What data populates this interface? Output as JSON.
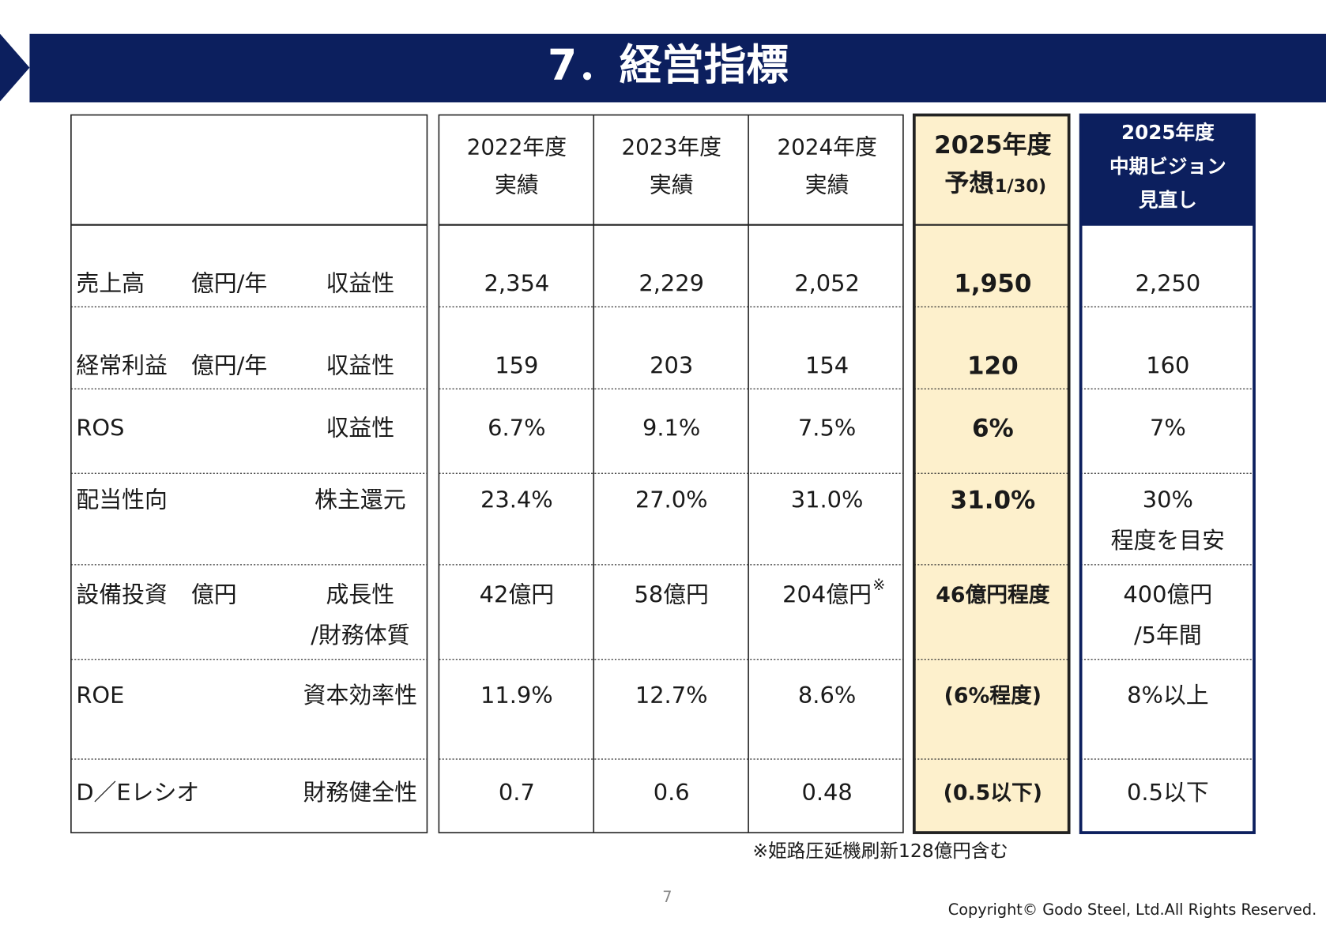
{
  "header": {
    "title": "7．経営指標"
  },
  "table": {
    "columns": [
      {
        "lines": [
          "2022年度",
          "実績"
        ]
      },
      {
        "lines": [
          "2023年度",
          "実績"
        ]
      },
      {
        "lines": [
          "2024年度",
          "実績"
        ]
      },
      {
        "lines": [
          "2025年度",
          "予想"
        ],
        "suffix": "(1/30)"
      },
      {
        "lines": [
          "2025年度",
          "中期ビジョン",
          "見直し"
        ]
      }
    ],
    "rows": [
      {
        "label": "売上高",
        "unit": "億円/年",
        "category": [
          "収益性"
        ],
        "cells": [
          {
            "lines": [
              "2,354"
            ]
          },
          {
            "lines": [
              "2,229"
            ]
          },
          {
            "lines": [
              "2,052"
            ]
          },
          {
            "lines": [
              "1,950"
            ]
          },
          {
            "lines": [
              "2,250"
            ]
          }
        ]
      },
      {
        "label": "経常利益",
        "unit": "億円/年",
        "category": [
          "収益性"
        ],
        "cells": [
          {
            "lines": [
              "159"
            ]
          },
          {
            "lines": [
              "203"
            ]
          },
          {
            "lines": [
              "154"
            ]
          },
          {
            "lines": [
              "120"
            ]
          },
          {
            "lines": [
              "160"
            ]
          }
        ]
      },
      {
        "label": "ROS",
        "category": [
          "収益性"
        ],
        "cells": [
          {
            "lines": [
              "6.7%"
            ]
          },
          {
            "lines": [
              "9.1%"
            ]
          },
          {
            "lines": [
              "7.5%"
            ]
          },
          {
            "lines": [
              "6%"
            ]
          },
          {
            "lines": [
              "7%"
            ]
          }
        ]
      },
      {
        "label": "配当性向",
        "category": [
          "株主還元"
        ],
        "cells": [
          {
            "lines": [
              "23.4%"
            ]
          },
          {
            "lines": [
              "27.0%"
            ]
          },
          {
            "lines": [
              "31.0%"
            ]
          },
          {
            "lines": [
              "31.0%"
            ]
          },
          {
            "lines": [
              "30%",
              "程度を目安"
            ]
          }
        ]
      },
      {
        "label": "設備投資",
        "unit": "億円",
        "category": [
          "成長性",
          "/財務体質"
        ],
        "cells": [
          {
            "lines": [
              "42億円"
            ]
          },
          {
            "lines": [
              "58億円"
            ]
          },
          {
            "lines": [
              "204億円"
            ],
            "note": "※"
          },
          {
            "lines": [
              "46億円程度"
            ]
          },
          {
            "lines": [
              "400億円",
              "/5年間"
            ]
          }
        ]
      },
      {
        "label": "ROE",
        "category": [
          "資本効率性"
        ],
        "cells": [
          {
            "lines": [
              "11.9%"
            ]
          },
          {
            "lines": [
              "12.7%"
            ]
          },
          {
            "lines": [
              "8.6%"
            ]
          },
          {
            "lines": [
              "(6%程度)"
            ]
          },
          {
            "lines": [
              "8%以上"
            ]
          }
        ]
      },
      {
        "label": "D／Eレシオ",
        "category": [
          "財務健全性"
        ],
        "cells": [
          {
            "lines": [
              "0.7"
            ]
          },
          {
            "lines": [
              "0.6"
            ]
          },
          {
            "lines": [
              "0.48"
            ]
          },
          {
            "lines": [
              "(0.5以下)"
            ]
          },
          {
            "lines": [
              "0.5以下"
            ]
          }
        ]
      }
    ]
  },
  "footnote": "※姫路圧延機刷新128億円含む",
  "page_number": "7",
  "copyright": "Copyright© Godo Steel, Ltd.All Rights Reserved."
}
